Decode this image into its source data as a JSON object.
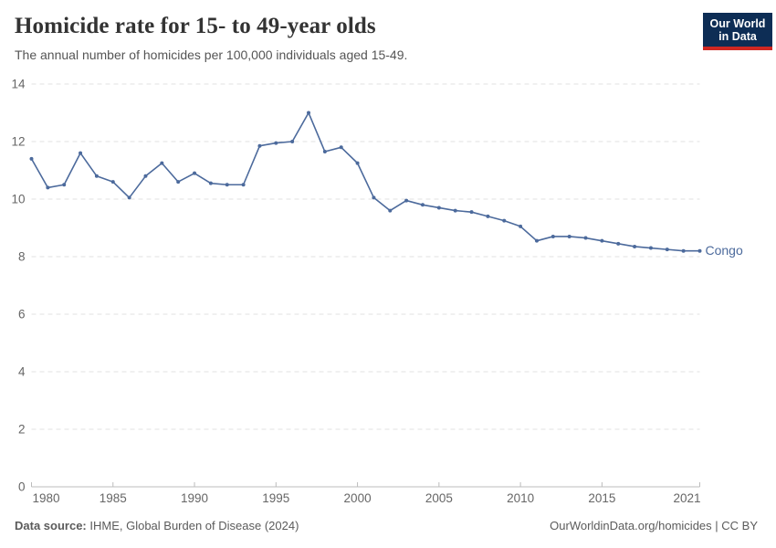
{
  "header": {
    "title": "Homicide rate for 15- to 49-year olds",
    "subtitle": "The annual number of homicides per 100,000 individuals aged 15-49."
  },
  "logo": {
    "line1": "Our World",
    "line2": "in Data",
    "bg_color": "#0d2d55",
    "accent_color": "#cf2722"
  },
  "footer": {
    "source_label": "Data source:",
    "source_text": " IHME, Global Burden of Disease (2024)",
    "credit": "OurWorldinData.org/homicides | CC BY"
  },
  "chart_data": {
    "type": "line",
    "title": "Homicide rate for 15- to 49-year olds",
    "subtitle": "The annual number of homicides per 100,000 individuals aged 15-49.",
    "xlabel": "",
    "ylabel": "",
    "xlim": [
      1980,
      2021
    ],
    "ylim": [
      0,
      14
    ],
    "x_ticks": [
      1980,
      1985,
      1990,
      1995,
      2000,
      2005,
      2010,
      2015,
      2021
    ],
    "y_ticks": [
      0,
      2,
      4,
      6,
      8,
      10,
      12,
      14
    ],
    "grid": "horizontal-dashed",
    "legend_position": "end-of-line",
    "x": [
      1980,
      1981,
      1982,
      1983,
      1984,
      1985,
      1986,
      1987,
      1988,
      1989,
      1990,
      1991,
      1992,
      1993,
      1994,
      1995,
      1996,
      1997,
      1998,
      1999,
      2000,
      2001,
      2002,
      2003,
      2004,
      2005,
      2006,
      2007,
      2008,
      2009,
      2010,
      2011,
      2012,
      2013,
      2014,
      2015,
      2016,
      2017,
      2018,
      2019,
      2020,
      2021
    ],
    "series": [
      {
        "name": "Congo",
        "color": "#4c6a9c",
        "values": [
          11.4,
          10.4,
          10.5,
          11.6,
          10.8,
          10.6,
          10.05,
          10.8,
          11.25,
          10.6,
          10.9,
          10.55,
          10.5,
          10.5,
          11.85,
          11.95,
          12.0,
          13.0,
          11.65,
          11.8,
          11.25,
          10.05,
          9.6,
          9.95,
          9.8,
          9.7,
          9.6,
          9.55,
          9.4,
          9.25,
          9.05,
          8.55,
          8.7,
          8.7,
          8.65,
          8.55,
          8.45,
          8.35,
          8.3,
          8.25,
          8.2,
          8.2
        ]
      }
    ],
    "axis_color": "#bcbcbc",
    "gridline_color": "#e2e2e2"
  }
}
